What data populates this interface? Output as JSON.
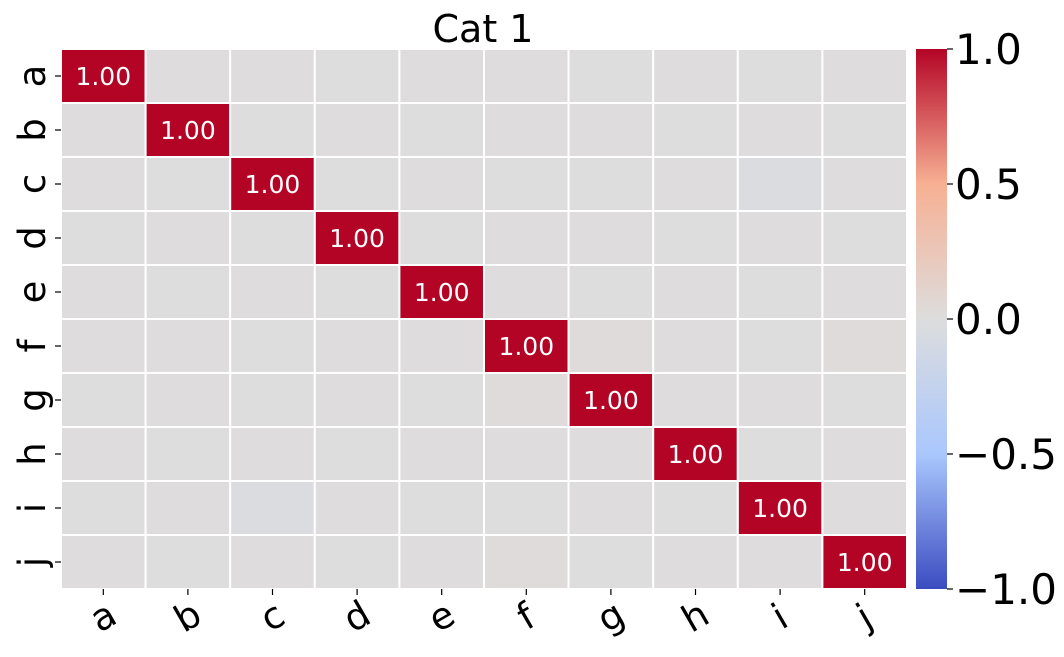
{
  "chart_data": {
    "type": "heatmap",
    "title": "Cat 1",
    "x_labels": [
      "a",
      "b",
      "c",
      "d",
      "e",
      "f",
      "g",
      "h",
      "i",
      "j"
    ],
    "y_labels": [
      "a",
      "b",
      "c",
      "d",
      "e",
      "f",
      "g",
      "h",
      "i",
      "j"
    ],
    "values": [
      [
        1.0,
        0.01,
        0.01,
        0.0,
        0.01,
        0.01,
        0.0,
        0.01,
        0.0,
        0.01
      ],
      [
        0.01,
        1.0,
        0.0,
        0.01,
        0.0,
        0.01,
        0.01,
        0.0,
        0.01,
        0.0
      ],
      [
        0.01,
        0.0,
        1.0,
        0.0,
        0.01,
        0.0,
        0.0,
        0.01,
        -0.03,
        0.01
      ],
      [
        0.0,
        0.01,
        0.0,
        1.0,
        0.0,
        0.01,
        0.01,
        0.0,
        0.01,
        0.0
      ],
      [
        0.01,
        0.0,
        0.01,
        0.0,
        1.0,
        0.01,
        0.0,
        0.01,
        0.0,
        0.01
      ],
      [
        0.01,
        0.01,
        0.0,
        0.01,
        0.01,
        1.0,
        0.02,
        0.01,
        0.0,
        0.02
      ],
      [
        0.0,
        0.01,
        0.0,
        0.01,
        0.0,
        0.02,
        1.0,
        0.01,
        0.01,
        0.0
      ],
      [
        0.01,
        0.0,
        0.01,
        0.0,
        0.01,
        0.01,
        0.01,
        1.0,
        0.0,
        0.01
      ],
      [
        0.0,
        0.01,
        -0.03,
        0.01,
        0.0,
        0.0,
        0.01,
        0.0,
        1.0,
        0.01
      ],
      [
        0.01,
        0.0,
        0.01,
        0.0,
        0.01,
        0.02,
        0.0,
        0.01,
        0.01,
        1.0
      ]
    ],
    "annotation_format": "0.00",
    "annotate_threshold": 0.5,
    "colormap": "coolwarm",
    "colormap_stops": [
      "#3b4cc0",
      "#aac7fd",
      "#dddddd",
      "#f7b093",
      "#b40426"
    ],
    "vmin": -1.0,
    "vmax": 1.0,
    "colorbar_ticks": [
      1.0,
      0.5,
      0.0,
      -0.5,
      -1.0
    ],
    "colorbar_tick_labels": [
      "1.0",
      "0.5",
      "0.0",
      "−0.5",
      "−1.0"
    ],
    "grid_line_color": "#ffffff"
  }
}
